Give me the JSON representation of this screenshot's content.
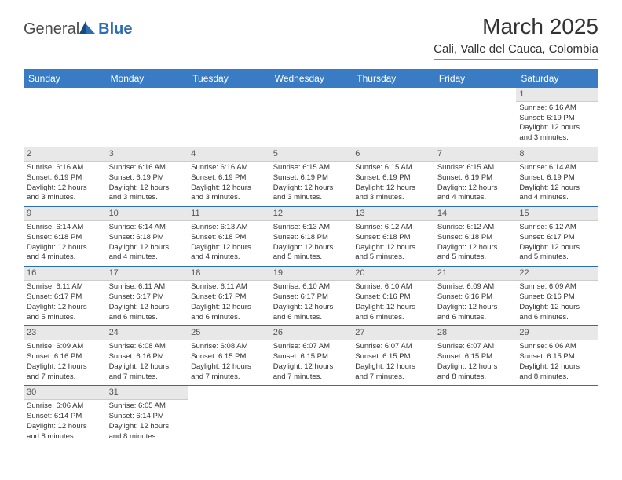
{
  "brand": {
    "name1": "General",
    "name2": "Blue"
  },
  "title": "March 2025",
  "location": "Cali, Valle del Cauca, Colombia",
  "colors": {
    "header_bg": "#3a7cc4",
    "border": "#2d6db3",
    "daynum_bg": "#e8e8e8",
    "text": "#333333"
  },
  "weekdays": [
    "Sunday",
    "Monday",
    "Tuesday",
    "Wednesday",
    "Thursday",
    "Friday",
    "Saturday"
  ],
  "weeks": [
    [
      null,
      null,
      null,
      null,
      null,
      null,
      {
        "d": "1",
        "sr": "Sunrise: 6:16 AM",
        "ss": "Sunset: 6:19 PM",
        "dl1": "Daylight: 12 hours",
        "dl2": "and 3 minutes."
      }
    ],
    [
      {
        "d": "2",
        "sr": "Sunrise: 6:16 AM",
        "ss": "Sunset: 6:19 PM",
        "dl1": "Daylight: 12 hours",
        "dl2": "and 3 minutes."
      },
      {
        "d": "3",
        "sr": "Sunrise: 6:16 AM",
        "ss": "Sunset: 6:19 PM",
        "dl1": "Daylight: 12 hours",
        "dl2": "and 3 minutes."
      },
      {
        "d": "4",
        "sr": "Sunrise: 6:16 AM",
        "ss": "Sunset: 6:19 PM",
        "dl1": "Daylight: 12 hours",
        "dl2": "and 3 minutes."
      },
      {
        "d": "5",
        "sr": "Sunrise: 6:15 AM",
        "ss": "Sunset: 6:19 PM",
        "dl1": "Daylight: 12 hours",
        "dl2": "and 3 minutes."
      },
      {
        "d": "6",
        "sr": "Sunrise: 6:15 AM",
        "ss": "Sunset: 6:19 PM",
        "dl1": "Daylight: 12 hours",
        "dl2": "and 3 minutes."
      },
      {
        "d": "7",
        "sr": "Sunrise: 6:15 AM",
        "ss": "Sunset: 6:19 PM",
        "dl1": "Daylight: 12 hours",
        "dl2": "and 4 minutes."
      },
      {
        "d": "8",
        "sr": "Sunrise: 6:14 AM",
        "ss": "Sunset: 6:19 PM",
        "dl1": "Daylight: 12 hours",
        "dl2": "and 4 minutes."
      }
    ],
    [
      {
        "d": "9",
        "sr": "Sunrise: 6:14 AM",
        "ss": "Sunset: 6:18 PM",
        "dl1": "Daylight: 12 hours",
        "dl2": "and 4 minutes."
      },
      {
        "d": "10",
        "sr": "Sunrise: 6:14 AM",
        "ss": "Sunset: 6:18 PM",
        "dl1": "Daylight: 12 hours",
        "dl2": "and 4 minutes."
      },
      {
        "d": "11",
        "sr": "Sunrise: 6:13 AM",
        "ss": "Sunset: 6:18 PM",
        "dl1": "Daylight: 12 hours",
        "dl2": "and 4 minutes."
      },
      {
        "d": "12",
        "sr": "Sunrise: 6:13 AM",
        "ss": "Sunset: 6:18 PM",
        "dl1": "Daylight: 12 hours",
        "dl2": "and 5 minutes."
      },
      {
        "d": "13",
        "sr": "Sunrise: 6:12 AM",
        "ss": "Sunset: 6:18 PM",
        "dl1": "Daylight: 12 hours",
        "dl2": "and 5 minutes."
      },
      {
        "d": "14",
        "sr": "Sunrise: 6:12 AM",
        "ss": "Sunset: 6:18 PM",
        "dl1": "Daylight: 12 hours",
        "dl2": "and 5 minutes."
      },
      {
        "d": "15",
        "sr": "Sunrise: 6:12 AM",
        "ss": "Sunset: 6:17 PM",
        "dl1": "Daylight: 12 hours",
        "dl2": "and 5 minutes."
      }
    ],
    [
      {
        "d": "16",
        "sr": "Sunrise: 6:11 AM",
        "ss": "Sunset: 6:17 PM",
        "dl1": "Daylight: 12 hours",
        "dl2": "and 5 minutes."
      },
      {
        "d": "17",
        "sr": "Sunrise: 6:11 AM",
        "ss": "Sunset: 6:17 PM",
        "dl1": "Daylight: 12 hours",
        "dl2": "and 6 minutes."
      },
      {
        "d": "18",
        "sr": "Sunrise: 6:11 AM",
        "ss": "Sunset: 6:17 PM",
        "dl1": "Daylight: 12 hours",
        "dl2": "and 6 minutes."
      },
      {
        "d": "19",
        "sr": "Sunrise: 6:10 AM",
        "ss": "Sunset: 6:17 PM",
        "dl1": "Daylight: 12 hours",
        "dl2": "and 6 minutes."
      },
      {
        "d": "20",
        "sr": "Sunrise: 6:10 AM",
        "ss": "Sunset: 6:16 PM",
        "dl1": "Daylight: 12 hours",
        "dl2": "and 6 minutes."
      },
      {
        "d": "21",
        "sr": "Sunrise: 6:09 AM",
        "ss": "Sunset: 6:16 PM",
        "dl1": "Daylight: 12 hours",
        "dl2": "and 6 minutes."
      },
      {
        "d": "22",
        "sr": "Sunrise: 6:09 AM",
        "ss": "Sunset: 6:16 PM",
        "dl1": "Daylight: 12 hours",
        "dl2": "and 6 minutes."
      }
    ],
    [
      {
        "d": "23",
        "sr": "Sunrise: 6:09 AM",
        "ss": "Sunset: 6:16 PM",
        "dl1": "Daylight: 12 hours",
        "dl2": "and 7 minutes."
      },
      {
        "d": "24",
        "sr": "Sunrise: 6:08 AM",
        "ss": "Sunset: 6:16 PM",
        "dl1": "Daylight: 12 hours",
        "dl2": "and 7 minutes."
      },
      {
        "d": "25",
        "sr": "Sunrise: 6:08 AM",
        "ss": "Sunset: 6:15 PM",
        "dl1": "Daylight: 12 hours",
        "dl2": "and 7 minutes."
      },
      {
        "d": "26",
        "sr": "Sunrise: 6:07 AM",
        "ss": "Sunset: 6:15 PM",
        "dl1": "Daylight: 12 hours",
        "dl2": "and 7 minutes."
      },
      {
        "d": "27",
        "sr": "Sunrise: 6:07 AM",
        "ss": "Sunset: 6:15 PM",
        "dl1": "Daylight: 12 hours",
        "dl2": "and 7 minutes."
      },
      {
        "d": "28",
        "sr": "Sunrise: 6:07 AM",
        "ss": "Sunset: 6:15 PM",
        "dl1": "Daylight: 12 hours",
        "dl2": "and 8 minutes."
      },
      {
        "d": "29",
        "sr": "Sunrise: 6:06 AM",
        "ss": "Sunset: 6:15 PM",
        "dl1": "Daylight: 12 hours",
        "dl2": "and 8 minutes."
      }
    ],
    [
      {
        "d": "30",
        "sr": "Sunrise: 6:06 AM",
        "ss": "Sunset: 6:14 PM",
        "dl1": "Daylight: 12 hours",
        "dl2": "and 8 minutes."
      },
      {
        "d": "31",
        "sr": "Sunrise: 6:05 AM",
        "ss": "Sunset: 6:14 PM",
        "dl1": "Daylight: 12 hours",
        "dl2": "and 8 minutes."
      },
      null,
      null,
      null,
      null,
      null
    ]
  ]
}
